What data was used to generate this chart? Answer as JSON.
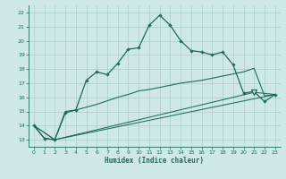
{
  "title": "",
  "xlabel": "Humidex (Indice chaleur)",
  "background_color": "#cde8e5",
  "grid_color": "#a8ceca",
  "line_color": "#1e6b5e",
  "xlim": [
    -0.5,
    23.5
  ],
  "ylim": [
    12.5,
    22.5
  ],
  "xticks": [
    0,
    1,
    2,
    3,
    4,
    5,
    6,
    7,
    8,
    9,
    10,
    11,
    12,
    13,
    14,
    15,
    16,
    17,
    18,
    19,
    20,
    21,
    22,
    23
  ],
  "yticks": [
    13,
    14,
    15,
    16,
    17,
    18,
    19,
    20,
    21,
    22
  ],
  "series1_x": [
    0,
    1,
    2,
    3,
    4,
    5,
    6,
    7,
    8,
    9,
    10,
    11,
    12,
    13,
    14,
    15,
    16,
    17,
    18,
    19,
    20,
    21,
    22,
    23
  ],
  "series1_y": [
    14.0,
    13.1,
    13.0,
    14.9,
    15.1,
    17.2,
    17.8,
    17.6,
    18.4,
    19.4,
    19.5,
    21.1,
    21.8,
    21.1,
    20.0,
    19.3,
    19.2,
    19.0,
    19.2,
    18.3,
    16.3,
    16.4,
    15.7,
    16.2
  ],
  "series2_x": [
    0,
    1,
    2,
    3,
    4,
    5,
    6,
    7,
    8,
    9,
    10,
    11,
    12,
    13,
    14,
    15,
    16,
    17,
    18,
    19,
    20,
    21,
    22,
    23
  ],
  "series2_y": [
    14.0,
    13.1,
    13.0,
    15.0,
    15.1,
    15.3,
    15.5,
    15.75,
    16.0,
    16.2,
    16.45,
    16.55,
    16.7,
    16.85,
    17.0,
    17.1,
    17.2,
    17.35,
    17.5,
    17.65,
    17.8,
    18.05,
    16.1,
    16.2
  ],
  "series3_x": [
    0,
    2,
    23
  ],
  "series3_y": [
    14.0,
    13.0,
    16.2
  ],
  "series4_x": [
    0,
    2,
    21,
    23
  ],
  "series4_y": [
    14.0,
    13.0,
    16.35,
    16.2
  ],
  "triangle_x": 21,
  "triangle_y": 16.35
}
